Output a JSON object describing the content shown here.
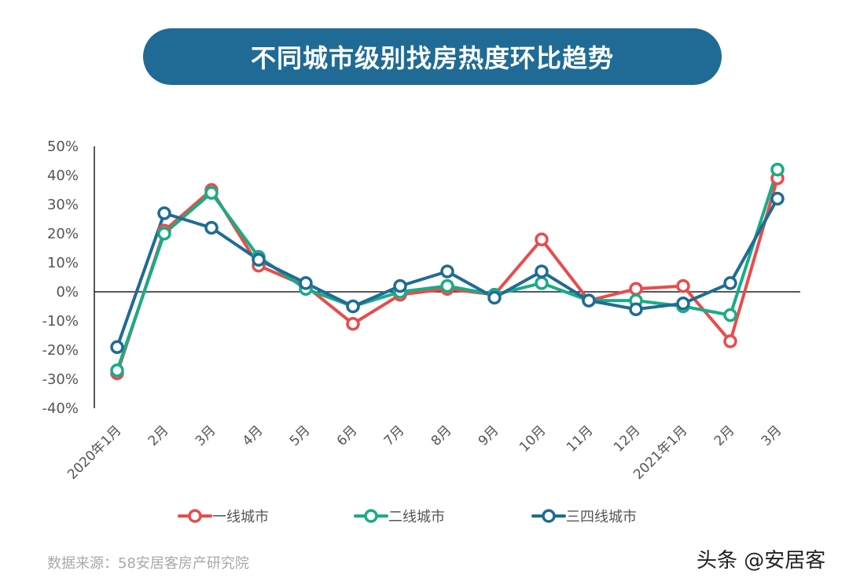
{
  "title": "不同城市级别找房热度环比趋势",
  "source": "数据来源：58安居客房产研究院",
  "watermark": "头条 @安居客",
  "chart_data": {
    "type": "line",
    "title": "不同城市级别找房热度环比趋势",
    "categories": [
      "2020年1月",
      "2月",
      "3月",
      "4月",
      "5月",
      "6月",
      "7月",
      "8月",
      "9月",
      "10月",
      "11月",
      "12月",
      "2021年1月",
      "2月",
      "3月"
    ],
    "ylim": [
      -40,
      50
    ],
    "yticks": [
      50,
      40,
      30,
      20,
      10,
      0,
      -10,
      -20,
      -30,
      -40
    ],
    "ytick_labels": [
      "50%",
      "40%",
      "30%",
      "20%",
      "10%",
      "0%",
      "-10%",
      "-20%",
      "-30%",
      "-40%"
    ],
    "legend_position": "bottom",
    "grid": false,
    "series": [
      {
        "name": "一线城市",
        "color": "#e84c4b",
        "values": [
          -28,
          21,
          35,
          9,
          2,
          -11,
          -1,
          1,
          -1,
          18,
          -3,
          1,
          2,
          -17,
          39
        ]
      },
      {
        "name": "二线城市",
        "color": "#17ad86",
        "values": [
          -27,
          20,
          34,
          12,
          1,
          -5,
          0,
          2,
          -1,
          3,
          -3,
          -3,
          -5,
          -8,
          42
        ]
      },
      {
        "name": "三四线城市",
        "color": "#1f6b95",
        "values": [
          -19,
          27,
          22,
          11,
          3,
          -5,
          2,
          7,
          -2,
          7,
          -3,
          -6,
          -4,
          3,
          32
        ]
      }
    ]
  }
}
